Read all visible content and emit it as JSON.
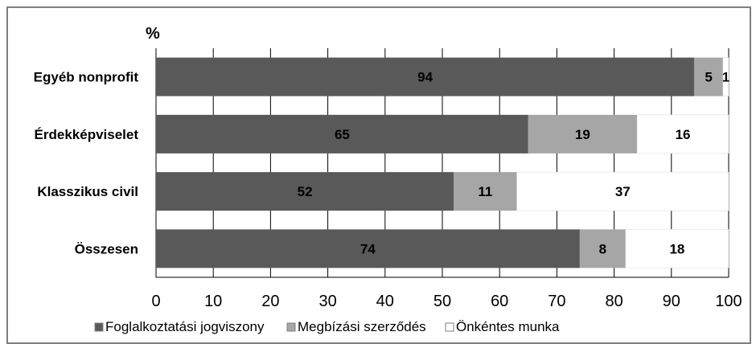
{
  "chart_data": {
    "type": "bar",
    "orientation": "horizontal",
    "stacked": true,
    "unit_label": "%",
    "categories": [
      "Egyéb nonprofit",
      "Érdekképviselet",
      "Klasszikus civil",
      "Összesen"
    ],
    "series": [
      {
        "name": "Foglalkoztatási jogviszony",
        "values": [
          94,
          65,
          52,
          74
        ],
        "color": "#595959"
      },
      {
        "name": "Megbízási szerződés",
        "values": [
          5,
          19,
          11,
          8
        ],
        "color": "#a6a6a6"
      },
      {
        "name": "Önkéntes munka",
        "values": [
          1,
          16,
          37,
          18
        ],
        "color": "#ffffff"
      }
    ],
    "xlim": [
      0,
      100
    ],
    "xticks": [
      "0",
      "10",
      "20",
      "30",
      "40",
      "50",
      "60",
      "70",
      "80",
      "90",
      "100"
    ],
    "grid": true,
    "legend_position": "bottom"
  }
}
